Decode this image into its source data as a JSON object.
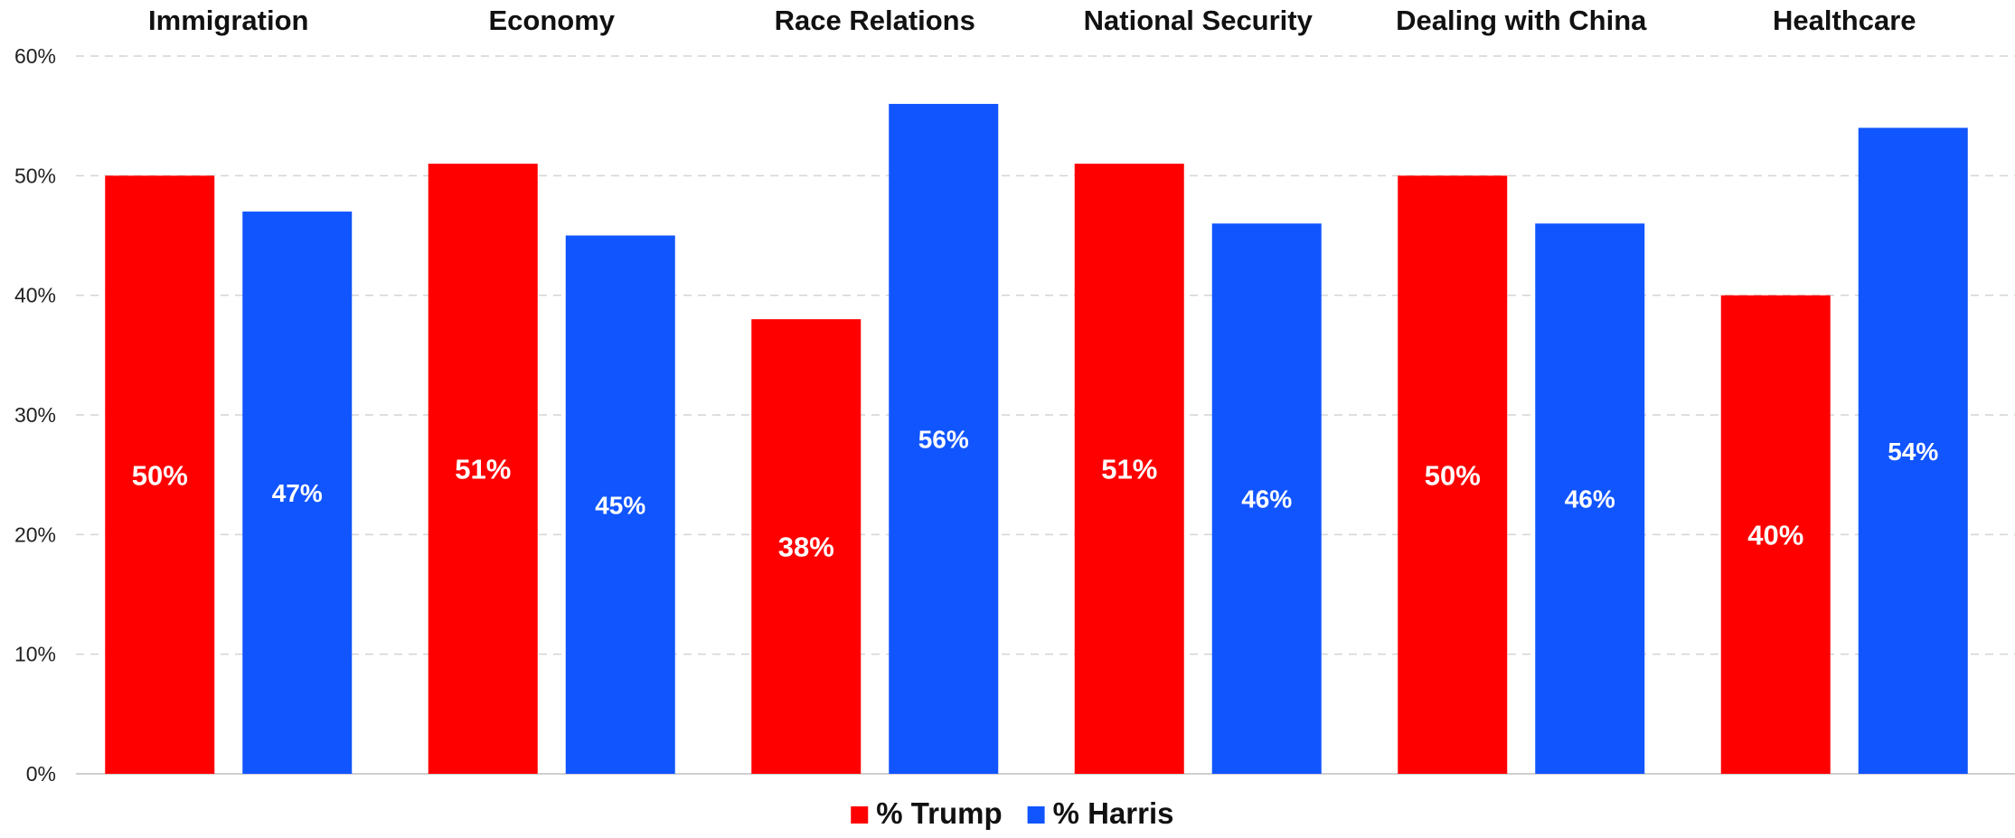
{
  "chart_data": {
    "type": "bar",
    "categories": [
      "Immigration",
      "Economy",
      "Race Relations",
      "National Security",
      "Dealing with China",
      "Healthcare"
    ],
    "series": [
      {
        "name": "% Trump",
        "color": "#ff0000",
        "values": [
          50,
          51,
          38,
          51,
          50,
          40
        ],
        "labels": [
          "50%",
          "51%",
          "38%",
          "51%",
          "50%",
          "40%"
        ]
      },
      {
        "name": "% Harris",
        "color": "#1155ff",
        "values": [
          47,
          45,
          56,
          46,
          46,
          54
        ],
        "labels": [
          "47%",
          "45%",
          "56%",
          "46%",
          "46%",
          "54%"
        ]
      }
    ],
    "y_ticks": [
      0,
      10,
      20,
      30,
      40,
      50,
      60
    ],
    "y_tick_labels": [
      "0%",
      "10%",
      "20%",
      "30%",
      "40%",
      "50%",
      "60%"
    ],
    "ylim": [
      0,
      60
    ],
    "grid": true,
    "category_labels_position": "top",
    "legend_position": "bottom-center",
    "title": "",
    "xlabel": "",
    "ylabel": ""
  }
}
